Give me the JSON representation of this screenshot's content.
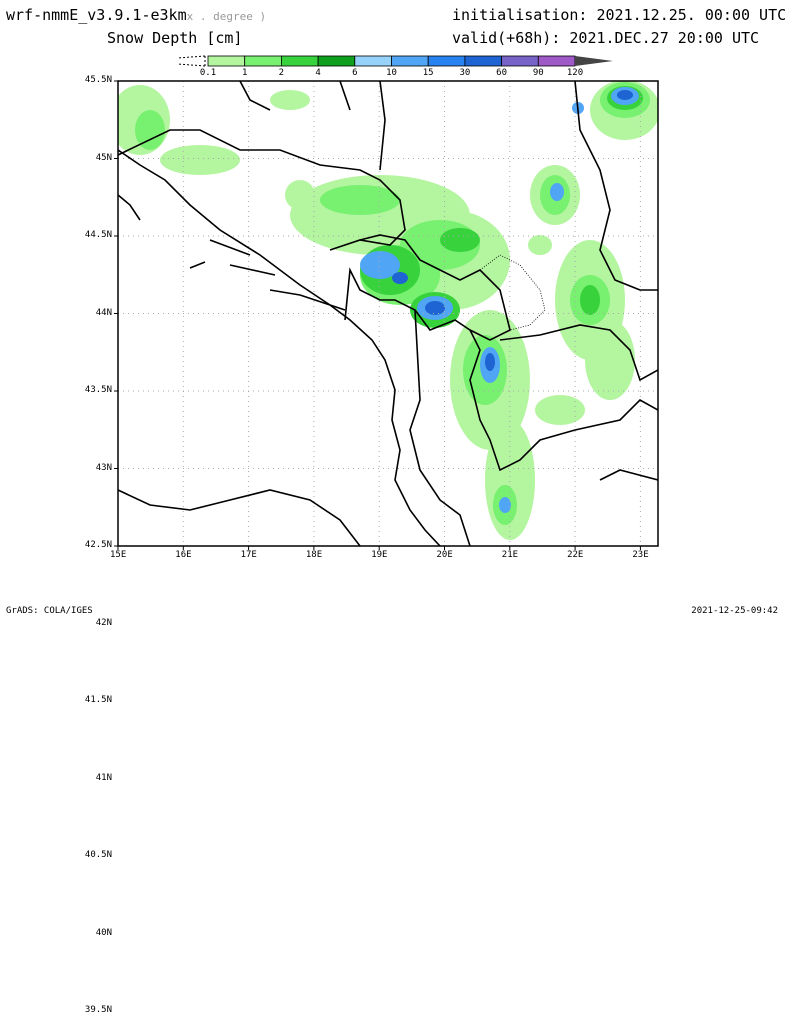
{
  "header": {
    "model": "wrf-nmmE_v3.9.1-e3km",
    "projection_note": "x . degree )",
    "field": "Snow Depth [cm]",
    "init": "initialisation: 2021.12.25.  00:00 UTC",
    "valid": "valid(+68h): 2021.DEC.27 20:00 UTC"
  },
  "colorbar": {
    "labels": [
      "0.1",
      "1",
      "2",
      "4",
      "6",
      "10",
      "15",
      "30",
      "60",
      "90",
      "120"
    ],
    "colors": [
      "#b4f5a0",
      "#78f070",
      "#37d23c",
      "#0fa01e",
      "#96d2fa",
      "#50a5f5",
      "#2882f0",
      "#1e64d2",
      "#7864c8",
      "#a05ac8"
    ],
    "overflow_color": "#444444"
  },
  "axes": {
    "lat_labels": [
      "45.5N",
      "45N",
      "44.5N",
      "44N",
      "43.5N",
      "43N",
      "42.5N",
      "42N",
      "41.5N",
      "41N",
      "40.5N",
      "40N",
      "39.5N"
    ],
    "lon_labels": [
      "15E",
      "16E",
      "17E",
      "18E",
      "19E",
      "20E",
      "21E",
      "22E",
      "23E"
    ]
  },
  "footer": {
    "left": "GrADS: COLA/IGES",
    "right": "2021-12-25-09:42"
  }
}
